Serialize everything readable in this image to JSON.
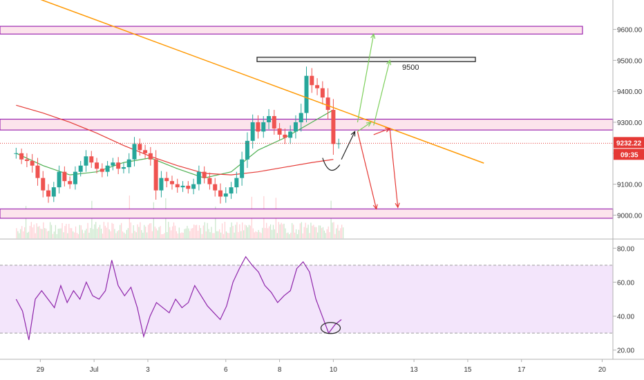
{
  "chart_data": {
    "type": "candlestick",
    "main_pane": {
      "price_axis": {
        "ylim": [
          8925,
          9695
        ],
        "ticks": [
          "9600.00",
          "9500.00",
          "9400.00",
          "9300.00",
          "9200.00",
          "9100.00",
          "9000.00"
        ]
      },
      "current_price": "9232.22",
      "countdown": "09:35",
      "annotation_label": "9500",
      "resistance_zones": [
        [
          9585,
          9610
        ],
        [
          9275,
          9310
        ]
      ],
      "support_zone": [
        8990,
        9020
      ],
      "trendline": {
        "x": [
          -0.3,
          8.7
        ],
        "y": [
          9745,
          9168
        ]
      }
    },
    "rsi_pane": {
      "ylim": [
        15,
        85
      ],
      "ticks": [
        "80.00",
        "60.00",
        "40.00",
        "20.00"
      ],
      "band": [
        30,
        70
      ]
    },
    "x_axis": {
      "xlim": [
        -0.3,
        11.1
      ],
      "ticks": [
        {
          "label": "29",
          "x": 0.45
        },
        {
          "label": "Jul",
          "x": 1.45
        },
        {
          "label": "3",
          "x": 2.45
        },
        {
          "label": "6",
          "x": 3.9
        },
        {
          "label": "8",
          "x": 4.9
        },
        {
          "label": "10",
          "x": 5.9
        },
        {
          "label": "13",
          "x": 7.4
        },
        {
          "label": "15",
          "x": 8.4
        },
        {
          "label": "17",
          "x": 9.4
        },
        {
          "label": "20",
          "x": 10.9
        }
      ]
    },
    "candles": {
      "x_start": 0.0,
      "x_end": 6.0,
      "close": [
        9200,
        9180,
        9175,
        9160,
        9120,
        9080,
        9060,
        9090,
        9140,
        9110,
        9100,
        9140,
        9160,
        9190,
        9170,
        9150,
        9140,
        9160,
        9170,
        9150,
        9155,
        9180,
        9230,
        9210,
        9200,
        9180,
        9080,
        9120,
        9110,
        9100,
        9090,
        9095,
        9085,
        9100,
        9140,
        9120,
        9100,
        9080,
        9060,
        9070,
        9090,
        9120,
        9180,
        9240,
        9300,
        9270,
        9300,
        9320,
        9280,
        9260,
        9250,
        9270,
        9300,
        9330,
        9450,
        9420,
        9410,
        9380,
        9340,
        9230,
        9232
      ],
      "spread": [
        35,
        30,
        40,
        45,
        50,
        45,
        40,
        35,
        40,
        35,
        30,
        35,
        30,
        40,
        35,
        30,
        35,
        30,
        30,
        35,
        30,
        40,
        45,
        35,
        35,
        40,
        60,
        45,
        40,
        35,
        35,
        30,
        30,
        35,
        40,
        35,
        35,
        40,
        45,
        40,
        35,
        40,
        50,
        55,
        50,
        45,
        40,
        45,
        40,
        35,
        40,
        40,
        45,
        60,
        60,
        50,
        45,
        45,
        60,
        70,
        30
      ]
    },
    "moving_averages": [
      {
        "color": "#4caf50",
        "x": [
          0,
          0.5,
          1.0,
          1.5,
          2.0,
          2.5,
          3.0,
          3.5,
          4.0,
          4.5,
          5.0,
          5.5,
          5.9
        ],
        "y": [
          9200,
          9160,
          9130,
          9140,
          9170,
          9185,
          9150,
          9120,
          9140,
          9210,
          9250,
          9300,
          9340
        ]
      },
      {
        "color": "#e53935",
        "x": [
          0,
          0.5,
          1.0,
          1.5,
          2.0,
          2.5,
          3.0,
          3.5,
          4.0,
          4.5,
          5.0,
          5.5,
          5.9
        ],
        "y": [
          9355,
          9330,
          9300,
          9265,
          9225,
          9190,
          9160,
          9135,
          9130,
          9140,
          9155,
          9170,
          9180
        ]
      }
    ],
    "rsi": {
      "x_start": 0.0,
      "x_end": 6.05,
      "values": [
        50,
        43,
        26,
        50,
        55,
        50,
        45,
        58,
        48,
        55,
        50,
        60,
        52,
        50,
        55,
        73,
        58,
        52,
        57,
        45,
        28,
        40,
        48,
        45,
        42,
        50,
        45,
        48,
        58,
        52,
        46,
        42,
        38,
        46,
        60,
        68,
        75,
        70,
        66,
        58,
        54,
        48,
        52,
        55,
        68,
        72,
        66,
        50,
        40,
        30,
        35,
        38
      ]
    }
  }
}
